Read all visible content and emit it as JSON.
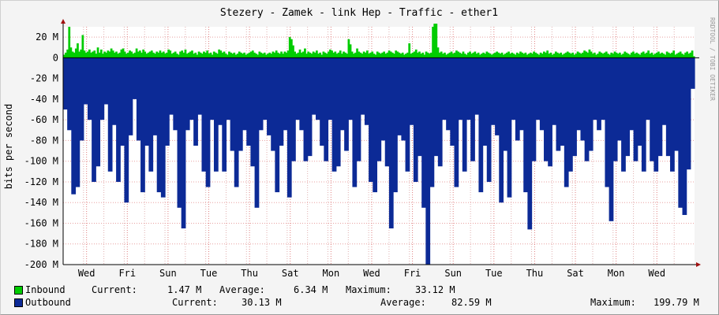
{
  "chart_data": {
    "type": "area",
    "title": "Stezery - Zamek - link Hep  - Traffic - ether1",
    "ylabel": "bits per second",
    "watermark": "RRDTOOL / TOBI OETIKER",
    "ylim": [
      -200,
      30
    ],
    "y_unit": "M",
    "y_ticks": [
      "20 M",
      "0",
      "-20 M",
      "-40 M",
      "-60 M",
      "-80 M",
      "-100 M",
      "-120 M",
      "-140 M",
      "-160 M",
      "-180 M",
      "-200 M"
    ],
    "y_tick_values": [
      20,
      0,
      -20,
      -40,
      -60,
      -80,
      -100,
      -120,
      -140,
      -160,
      -180,
      -200
    ],
    "x_ticks": [
      "Wed",
      "Fri",
      "Sun",
      "Tue",
      "Thu",
      "Sat",
      "Mon",
      "Wed",
      "Fri",
      "Sun",
      "Tue",
      "Thu",
      "Sat",
      "Mon",
      "Wed"
    ],
    "series": [
      {
        "name": "Inbound",
        "color": "#00cc00",
        "values": [
          3,
          5,
          8,
          30,
          10,
          6,
          5,
          9,
          14,
          6,
          8,
          22,
          7,
          5,
          6,
          8,
          5,
          6,
          7,
          4,
          10,
          5,
          8,
          4,
          6,
          5,
          7,
          6,
          9,
          7,
          5,
          6,
          4,
          5,
          8,
          9,
          6,
          4,
          5,
          7,
          6,
          4,
          5,
          9,
          6,
          7,
          5,
          8,
          6,
          4,
          5,
          6,
          7,
          5,
          4,
          6,
          5,
          7,
          5,
          6,
          4,
          5,
          8,
          7,
          4,
          5,
          6,
          4,
          3,
          6,
          7,
          5,
          8,
          4,
          5,
          6,
          7,
          4,
          5,
          3,
          6,
          5,
          4,
          6,
          5,
          7,
          4,
          5,
          3,
          6,
          5,
          4,
          8,
          7,
          5,
          6,
          4,
          3,
          6,
          5,
          4,
          5,
          3,
          4,
          6,
          5,
          4,
          5,
          3,
          4,
          5,
          6,
          7,
          5,
          4,
          3,
          6,
          5,
          4,
          5,
          3,
          4,
          5,
          4,
          6,
          5,
          7,
          5,
          4,
          6,
          4,
          6,
          5,
          7,
          20,
          18,
          12,
          6,
          4,
          5,
          8,
          5,
          6,
          9,
          4,
          6,
          5,
          4,
          6,
          5,
          7,
          4,
          5,
          3,
          6,
          5,
          4,
          6,
          8,
          7,
          5,
          6,
          4,
          5,
          7,
          4,
          6,
          5,
          4,
          18,
          13,
          6,
          4,
          5,
          9,
          6,
          5,
          4,
          6,
          5,
          7,
          4,
          5,
          6,
          4,
          3,
          6,
          5,
          4,
          5,
          6,
          4,
          5,
          7,
          6,
          5,
          4,
          7,
          6,
          5,
          4,
          5,
          3,
          4,
          5,
          14,
          4,
          5,
          6,
          8,
          5,
          6,
          4,
          5,
          3,
          6,
          5,
          4,
          5,
          30,
          33,
          33,
          10,
          5,
          6,
          4,
          5,
          3,
          4,
          5,
          6,
          4,
          5,
          7,
          6,
          5,
          4,
          6,
          4,
          3,
          5,
          6,
          4,
          5,
          6,
          4,
          5,
          3,
          4,
          5,
          4,
          6,
          5,
          4,
          3,
          4,
          5,
          6,
          5,
          4,
          5,
          3,
          4,
          5,
          6,
          4,
          5,
          4,
          3,
          5,
          4,
          6,
          5,
          4,
          5,
          3,
          4,
          5,
          4,
          6,
          5,
          4,
          3,
          5,
          4,
          6,
          5,
          7,
          4,
          5,
          3,
          4,
          6,
          5,
          4,
          5,
          3,
          4,
          5,
          6,
          5,
          4,
          5,
          3,
          4,
          6,
          5,
          4,
          5,
          7,
          6,
          5,
          8,
          6,
          4,
          5,
          3,
          4,
          6,
          5,
          4,
          5,
          6,
          4,
          3,
          5,
          4,
          6,
          5,
          4,
          5,
          3,
          4,
          6,
          5,
          4,
          3,
          5,
          6,
          4,
          5,
          4,
          3,
          5,
          6,
          4,
          5,
          7,
          4,
          5,
          3,
          4,
          5,
          6,
          4,
          5,
          4,
          3,
          6,
          5,
          4,
          5,
          7,
          3,
          4,
          5,
          6,
          4,
          3,
          5,
          6,
          4,
          5,
          7,
          1.5
        ],
        "stats": {
          "current": "1.47 M",
          "average": "6.34 M",
          "maximum": "33.12 M"
        }
      },
      {
        "name": "Outbound",
        "color": "#0c2a96",
        "values": [
          -50,
          -70,
          -132,
          -125,
          -80,
          -45,
          -60,
          -120,
          -105,
          -60,
          -45,
          -110,
          -65,
          -120,
          -85,
          -140,
          -75,
          -40,
          -80,
          -130,
          -85,
          -110,
          -75,
          -130,
          -135,
          -85,
          -55,
          -70,
          -145,
          -165,
          -70,
          -60,
          -85,
          -55,
          -110,
          -125,
          -60,
          -110,
          -65,
          -110,
          -60,
          -90,
          -125,
          -90,
          -70,
          -85,
          -105,
          -145,
          -70,
          -60,
          -75,
          -90,
          -130,
          -85,
          -70,
          -135,
          -100,
          -60,
          -70,
          -100,
          -95,
          -55,
          -60,
          -85,
          -100,
          -60,
          -110,
          -105,
          -70,
          -90,
          -60,
          -125,
          -100,
          -55,
          -65,
          -120,
          -130,
          -100,
          -80,
          -105,
          -165,
          -130,
          -75,
          -80,
          -110,
          -65,
          -120,
          -95,
          -145,
          -200,
          -125,
          -95,
          -105,
          -60,
          -70,
          -85,
          -125,
          -60,
          -110,
          -60,
          -100,
          -55,
          -130,
          -85,
          -120,
          -65,
          -75,
          -140,
          -90,
          -135,
          -60,
          -80,
          -70,
          -130,
          -166,
          -100,
          -60,
          -70,
          -100,
          -105,
          -65,
          -90,
          -85,
          -125,
          -110,
          -95,
          -70,
          -80,
          -100,
          -90,
          -60,
          -70,
          -60,
          -125,
          -158,
          -100,
          -80,
          -110,
          -95,
          -70,
          -100,
          -85,
          -110,
          -60,
          -100,
          -110,
          -95,
          -65,
          -95,
          -110,
          -90,
          -145,
          -152,
          -108,
          -30
        ],
        "stats": {
          "current": "30.13 M",
          "average": "82.59 M",
          "maximum": "199.79 M"
        }
      }
    ],
    "legend": [
      {
        "name": "Inbound",
        "current_label": "Current:",
        "current": "1.47 M",
        "average_label": "Average:",
        "average": "6.34 M",
        "maximum_label": "Maximum:",
        "maximum": "33.12 M"
      },
      {
        "name": "Outbound",
        "current_label": "Current:",
        "current": "30.13 M",
        "average_label": "Average:",
        "average": "82.59 M",
        "maximum_label": "Maximum:",
        "maximum": "199.79 M"
      }
    ],
    "grid": true,
    "legend_position": "bottom"
  }
}
